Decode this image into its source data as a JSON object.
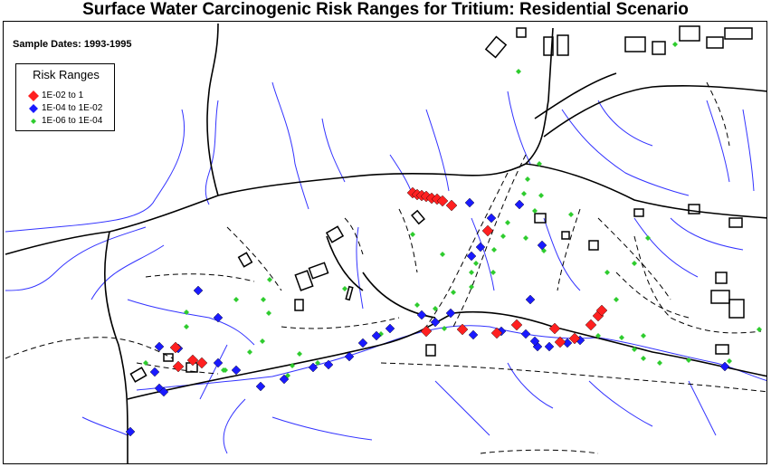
{
  "title": "Surface Water Carcinogenic Risk Ranges for Tritium: Residential Scenario",
  "sample_dates": "Sample Dates: 1993-1995",
  "legend": {
    "title": "Risk Ranges",
    "items": [
      {
        "label": "1E-02 to 1",
        "color": "#ff2020",
        "shape": "diamond-large"
      },
      {
        "label": "1E-04 to 1E-02",
        "color": "#1a1aff",
        "shape": "diamond-medium"
      },
      {
        "label": "1E-06 to 1E-04",
        "color": "#2ecc2e",
        "shape": "diamond-small"
      }
    ]
  },
  "colors": {
    "streams": "#3333ff",
    "roads": "#000000",
    "high": "#ff2020",
    "medium": "#1a1aff",
    "low": "#2ecc2e"
  }
}
